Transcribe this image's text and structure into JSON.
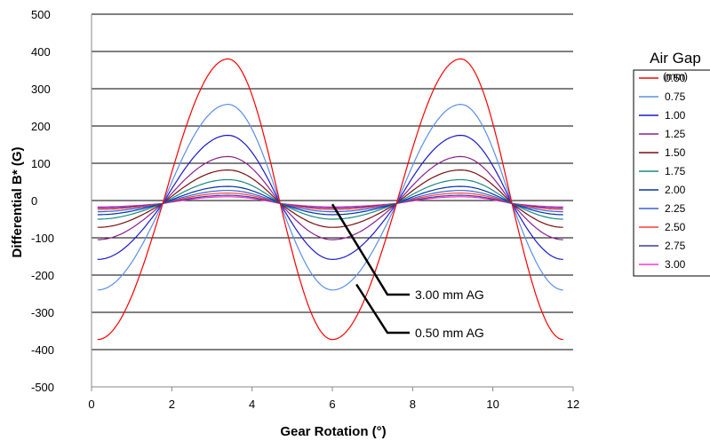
{
  "chart_data": {
    "type": "line",
    "title": "",
    "xlabel": "Gear Rotation (°)",
    "ylabel": "Differential B* (G)",
    "xlim": [
      0,
      12
    ],
    "ylim": [
      -500,
      500
    ],
    "x_ticks": [
      0,
      2,
      4,
      6,
      8,
      10,
      12
    ],
    "y_ticks": [
      -500,
      -400,
      -300,
      -200,
      -100,
      0,
      100,
      200,
      300,
      400,
      500
    ],
    "grid": "horizontal",
    "legend": {
      "title": "Air Gap",
      "subtitle": "(mm)",
      "placement": "right"
    },
    "curve_model": {
      "x_start": 0.15,
      "x_end": 11.75,
      "peaks_at": [
        3.4,
        9.2
      ],
      "zero_crossings_at": [
        1.6,
        4.8,
        7.4,
        10.6
      ],
      "troughs_at": [
        0.15,
        6.0,
        11.75
      ],
      "zero_line_value": -8
    },
    "series": [
      {
        "name": "0.50",
        "color": "#ff0000",
        "peak": 380,
        "trough": -373
      },
      {
        "name": "0.75",
        "color": "#5b8fe6",
        "peak": 258,
        "trough": -240
      },
      {
        "name": "1.00",
        "color": "#1a1acc",
        "peak": 175,
        "trough": -158
      },
      {
        "name": "1.25",
        "color": "#8a2090",
        "peak": 118,
        "trough": -105
      },
      {
        "name": "1.50",
        "color": "#7a0e0e",
        "peak": 82,
        "trough": -72
      },
      {
        "name": "1.75",
        "color": "#1a8a80",
        "peak": 56,
        "trough": -50
      },
      {
        "name": "2.00",
        "color": "#0033aa",
        "peak": 38,
        "trough": -38
      },
      {
        "name": "2.25",
        "color": "#3c5fd0",
        "peak": 27,
        "trough": -30
      },
      {
        "name": "2.50",
        "color": "#ff3b3b",
        "peak": 20,
        "trough": -24
      },
      {
        "name": "2.75",
        "color": "#3a3aa0",
        "peak": 14,
        "trough": -20
      },
      {
        "name": "3.00",
        "color": "#ff33cc",
        "peak": 10,
        "trough": -17
      }
    ],
    "annotations": [
      {
        "text": "3.00 mm AG",
        "points_to": {
          "x": 6.0,
          "y": -10
        }
      },
      {
        "text": "0.50 mm AG",
        "points_to": {
          "x": 6.6,
          "y": -225
        }
      }
    ]
  }
}
